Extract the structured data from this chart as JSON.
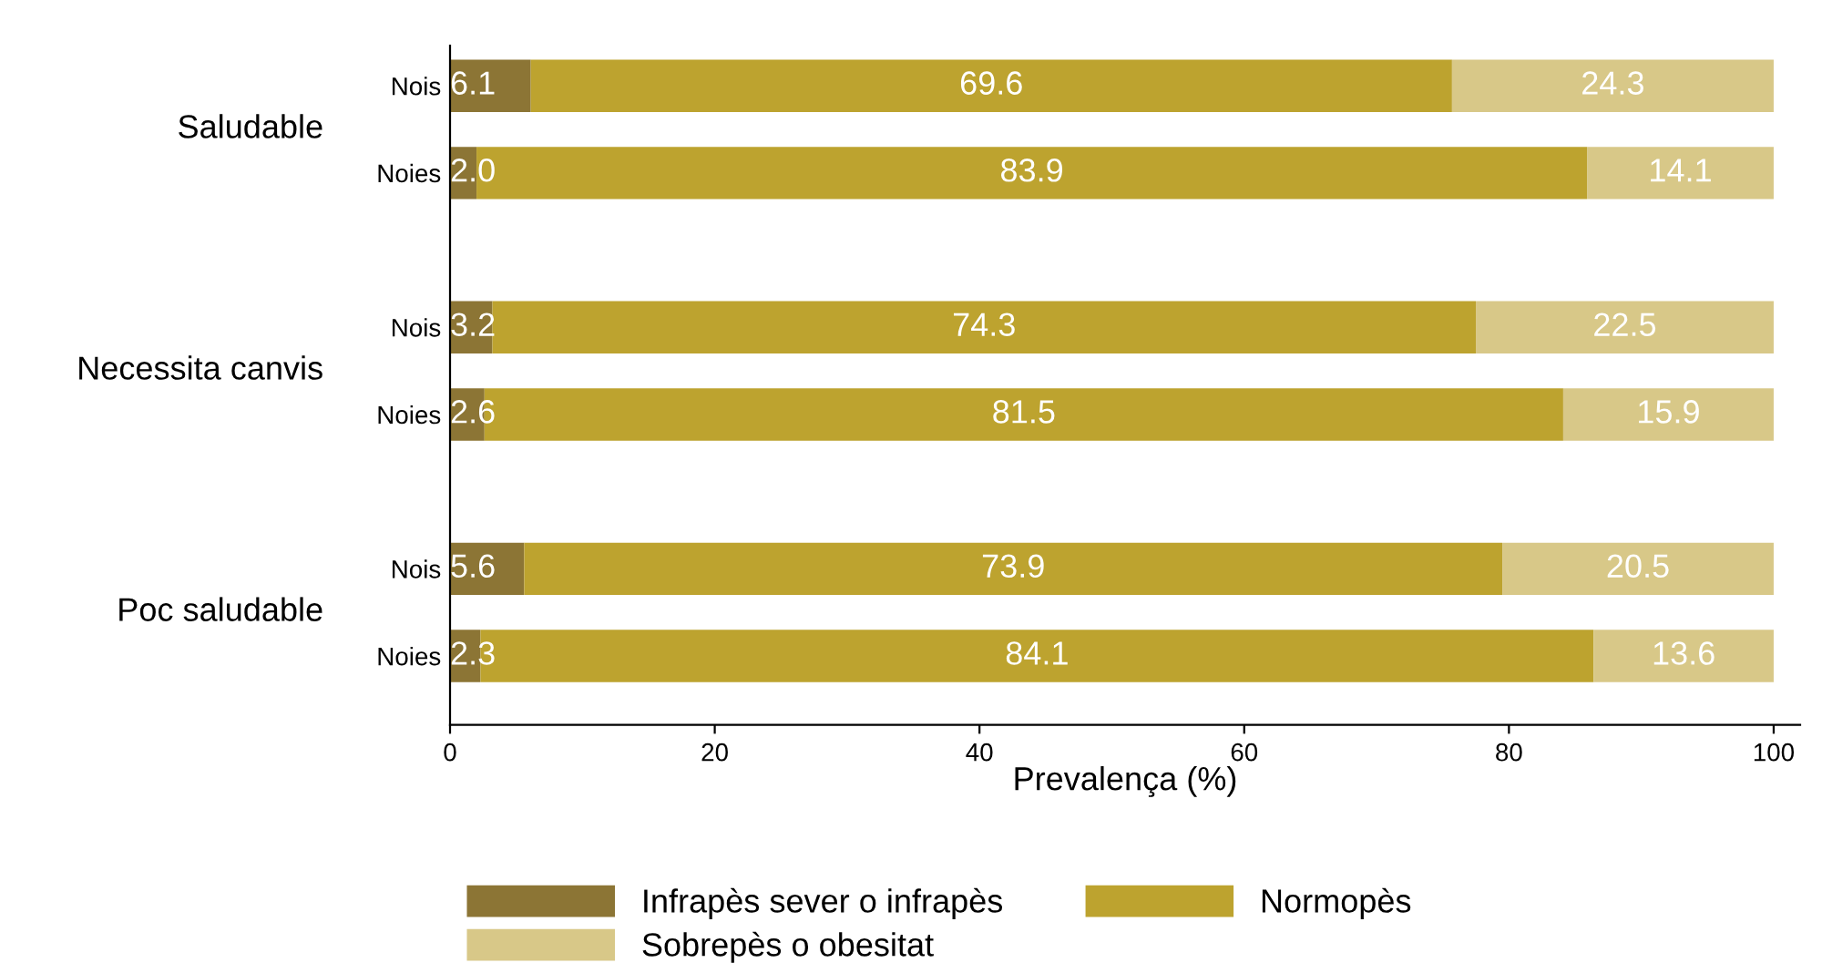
{
  "chart_data": {
    "type": "bar",
    "orientation": "horizontal",
    "stacked": true,
    "xlabel": "Prevalença (%)",
    "categories": [
      "Nois",
      "Noies",
      "Nois",
      "Noies",
      "Nois",
      "Noies"
    ],
    "annotations": [
      "Saludable",
      "Necessita canvis",
      "Poc saludable"
    ],
    "series": [
      {
        "name": "Infrapès sever o infrapès",
        "color": "#8c7535",
        "values": [
          6.1,
          2.0,
          3.2,
          2.6,
          5.6,
          2.3
        ],
        "value_labels": [
          "6.1",
          "2.0",
          "3.2",
          "2.6",
          "5.6",
          "2.3"
        ]
      },
      {
        "name": "Normopès",
        "color": "#bda32f",
        "values": [
          69.6,
          83.9,
          74.3,
          81.5,
          73.9,
          84.1
        ],
        "value_labels": [
          "69.6",
          "83.9",
          "74.3",
          "81.5",
          "73.9",
          "84.1"
        ]
      },
      {
        "name": "Sobrepès o obesitat",
        "color": "#d8c888",
        "values": [
          24.3,
          14.1,
          22.5,
          15.9,
          20.5,
          13.6
        ],
        "value_labels": [
          "24.3",
          "14.1",
          "22.5",
          "15.9",
          "20.5",
          "13.6"
        ]
      }
    ],
    "xlim": [
      0,
      102
    ],
    "xticks": [
      0,
      20,
      40,
      60,
      80,
      100
    ],
    "grid": false,
    "legend": "bottom"
  }
}
